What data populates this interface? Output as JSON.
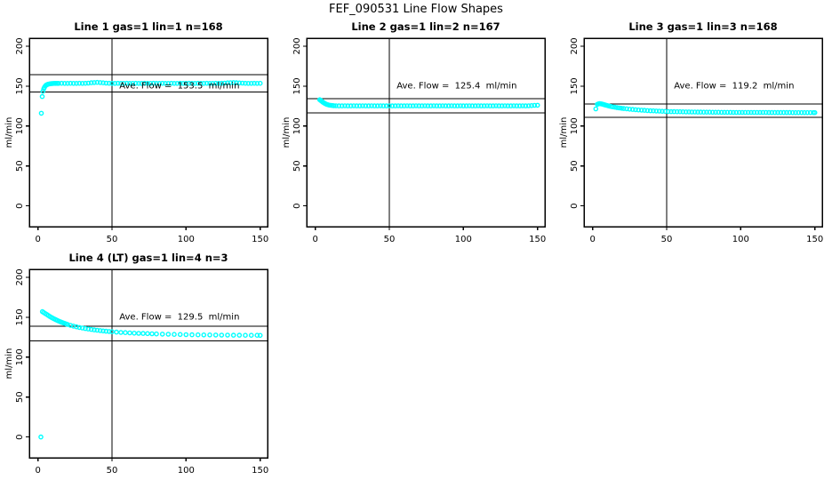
{
  "page_title": "FEF_090531  Line Flow Shapes",
  "chart_data": [
    {
      "type": "scatter",
      "title": "Line 1 gas=1 lin=1 n=168",
      "ylabel": "ml/min",
      "ave_flow_ml_min": 153.5,
      "ave_flow_label": "Ave. Flow =  153.5  ml/min",
      "limit_lines": [
        164.2,
        142.8
      ],
      "vline_x": 50,
      "xlim": [
        -5.8,
        155
      ],
      "ylim": [
        -26,
        210
      ],
      "xticks": [
        0,
        50,
        100,
        150
      ],
      "yticks": [
        0,
        50,
        100,
        150,
        200
      ],
      "marker_color": "#00FFFF",
      "label_pos": [
        95.5,
        150.5
      ],
      "points": [
        [
          2.3,
          116
        ],
        [
          2.9,
          137
        ],
        [
          3.4,
          143.5
        ],
        [
          3.9,
          146.5
        ],
        [
          4.4,
          148.5
        ],
        [
          5,
          150.2
        ],
        [
          5.6,
          151.3
        ],
        [
          6.3,
          152
        ],
        [
          7,
          152.5
        ],
        [
          8,
          152.9
        ],
        [
          9,
          153.1
        ],
        [
          10,
          153.3
        ],
        [
          11,
          153.4
        ],
        [
          12,
          153.5
        ],
        [
          13,
          153.5
        ],
        [
          14,
          153.5
        ],
        [
          16,
          153.6
        ],
        [
          18,
          153.5
        ],
        [
          20,
          153.5
        ],
        [
          22,
          153.6
        ],
        [
          24,
          153.5
        ],
        [
          26,
          153.5
        ],
        [
          28,
          153.6
        ],
        [
          30,
          153.5
        ],
        [
          32,
          153.6
        ],
        [
          34,
          153.8
        ],
        [
          36,
          154.2
        ],
        [
          38,
          154.5
        ],
        [
          40,
          154.7
        ],
        [
          42,
          154.5
        ],
        [
          44,
          154.1
        ],
        [
          46,
          153.8
        ],
        [
          48,
          153.6
        ],
        [
          50,
          153.5
        ],
        [
          52,
          153.5
        ],
        [
          54,
          153.6
        ],
        [
          56,
          153.5
        ],
        [
          58,
          153.5
        ],
        [
          60,
          153.6
        ],
        [
          62,
          153.5
        ],
        [
          64,
          153.5
        ],
        [
          66,
          153.6
        ],
        [
          68,
          153.5
        ],
        [
          70,
          153.5
        ],
        [
          72,
          153.6
        ],
        [
          74,
          153.5
        ],
        [
          76,
          153.5
        ],
        [
          78,
          153.6
        ],
        [
          80,
          153.5
        ],
        [
          82,
          153.5
        ],
        [
          84,
          153.6
        ],
        [
          86,
          153.5
        ],
        [
          88,
          153.5
        ],
        [
          90,
          153.6
        ],
        [
          92,
          153.5
        ],
        [
          94,
          153.5
        ],
        [
          96,
          153.6
        ],
        [
          98,
          153.5
        ],
        [
          100,
          153.5
        ],
        [
          102,
          153.6
        ],
        [
          104,
          153.5
        ],
        [
          106,
          153.5
        ],
        [
          108,
          153.6
        ],
        [
          110,
          153.5
        ],
        [
          112,
          153.5
        ],
        [
          114,
          153.6
        ],
        [
          116,
          153.5
        ],
        [
          118,
          153.5
        ],
        [
          120,
          153.6
        ],
        [
          122,
          153.5
        ],
        [
          124,
          153.6
        ],
        [
          126,
          153.8
        ],
        [
          128,
          154.1
        ],
        [
          130,
          154.3
        ],
        [
          132,
          154.4
        ],
        [
          134,
          154.2
        ],
        [
          136,
          154
        ],
        [
          138,
          153.8
        ],
        [
          140,
          153.6
        ],
        [
          142,
          153.5
        ],
        [
          144,
          153.5
        ],
        [
          146,
          153.6
        ],
        [
          148,
          153.5
        ],
        [
          150,
          153.6
        ]
      ]
    },
    {
      "type": "scatter",
      "title": "Line 2 gas=1 lin=2 n=167",
      "ylabel": "ml/min",
      "ave_flow_ml_min": 125.4,
      "ave_flow_label": "Ave. Flow =  125.4  ml/min",
      "limit_lines": [
        134.2,
        116.6
      ],
      "vline_x": 50,
      "xlim": [
        -5.8,
        155
      ],
      "ylim": [
        -26,
        210
      ],
      "xticks": [
        0,
        50,
        100,
        150
      ],
      "yticks": [
        0,
        50,
        100,
        150,
        200
      ],
      "marker_color": "#00FFFF",
      "label_pos": [
        95.5,
        150.5
      ],
      "points": [
        [
          3,
          133
        ],
        [
          3.5,
          132.4
        ],
        [
          4,
          131.6
        ],
        [
          4.6,
          130.7
        ],
        [
          5.2,
          129.8
        ],
        [
          6,
          128.8
        ],
        [
          6.8,
          128
        ],
        [
          7.6,
          127.3
        ],
        [
          8.5,
          126.7
        ],
        [
          9.5,
          126.2
        ],
        [
          10.5,
          125.9
        ],
        [
          11.5,
          125.7
        ],
        [
          12.5,
          125.5
        ],
        [
          14,
          125.4
        ],
        [
          16,
          125.3
        ],
        [
          18,
          125.3
        ],
        [
          20,
          125.4
        ],
        [
          22,
          125.3
        ],
        [
          24,
          125.3
        ],
        [
          26,
          125.4
        ],
        [
          28,
          125.3
        ],
        [
          30,
          125.3
        ],
        [
          32,
          125.4
        ],
        [
          34,
          125.3
        ],
        [
          36,
          125.3
        ],
        [
          38,
          125.4
        ],
        [
          40,
          125.3
        ],
        [
          42,
          125.3
        ],
        [
          44,
          125.4
        ],
        [
          46,
          125.3
        ],
        [
          48,
          125.3
        ],
        [
          50,
          125.4
        ],
        [
          52,
          125.3
        ],
        [
          54,
          125.3
        ],
        [
          56,
          125.4
        ],
        [
          58,
          125.3
        ],
        [
          60,
          125.3
        ],
        [
          62,
          125.4
        ],
        [
          64,
          125.3
        ],
        [
          66,
          125.3
        ],
        [
          68,
          125.4
        ],
        [
          70,
          125.3
        ],
        [
          72,
          125.3
        ],
        [
          74,
          125.4
        ],
        [
          76,
          125.3
        ],
        [
          78,
          125.3
        ],
        [
          80,
          125.4
        ],
        [
          82,
          125.3
        ],
        [
          84,
          125.3
        ],
        [
          86,
          125.4
        ],
        [
          88,
          125.3
        ],
        [
          90,
          125.3
        ],
        [
          92,
          125.4
        ],
        [
          94,
          125.3
        ],
        [
          96,
          125.3
        ],
        [
          98,
          125.4
        ],
        [
          100,
          125.3
        ],
        [
          102,
          125.3
        ],
        [
          104,
          125.4
        ],
        [
          106,
          125.3
        ],
        [
          108,
          125.3
        ],
        [
          110,
          125.4
        ],
        [
          112,
          125.3
        ],
        [
          114,
          125.3
        ],
        [
          116,
          125.4
        ],
        [
          118,
          125.3
        ],
        [
          120,
          125.3
        ],
        [
          122,
          125.4
        ],
        [
          124,
          125.3
        ],
        [
          126,
          125.3
        ],
        [
          128,
          125.4
        ],
        [
          130,
          125.3
        ],
        [
          132,
          125.3
        ],
        [
          134,
          125.4
        ],
        [
          136,
          125.3
        ],
        [
          138,
          125.3
        ],
        [
          140,
          125.4
        ],
        [
          142,
          125.3
        ],
        [
          144,
          125.4
        ],
        [
          146,
          125.6
        ],
        [
          148,
          125.9
        ],
        [
          150,
          126.1
        ]
      ]
    },
    {
      "type": "scatter",
      "title": "Line 3 gas=1 lin=3 n=168",
      "ylabel": "ml/min",
      "ave_flow_ml_min": 119.2,
      "ave_flow_label": "Ave. Flow =  119.2  ml/min",
      "limit_lines": [
        127.5,
        110.9
      ],
      "vline_x": 50,
      "xlim": [
        -5.8,
        155
      ],
      "ylim": [
        -26,
        210
      ],
      "xticks": [
        0,
        50,
        100,
        150
      ],
      "yticks": [
        0,
        50,
        100,
        150,
        200
      ],
      "marker_color": "#00FFFF",
      "label_pos": [
        95.5,
        150.5
      ],
      "points": [
        [
          2.2,
          121.5
        ],
        [
          3.2,
          127.2
        ],
        [
          4,
          127.9
        ],
        [
          4.8,
          128.1
        ],
        [
          5.6,
          127.9
        ],
        [
          6.5,
          127.5
        ],
        [
          7.5,
          127
        ],
        [
          8.5,
          126.4
        ],
        [
          9.5,
          125.9
        ],
        [
          10.5,
          125.4
        ],
        [
          11.5,
          124.9
        ],
        [
          12.5,
          124.5
        ],
        [
          13.5,
          124.1
        ],
        [
          15,
          123.6
        ],
        [
          16.5,
          123.1
        ],
        [
          18,
          122.7
        ],
        [
          19.5,
          122.3
        ],
        [
          21,
          122
        ],
        [
          23,
          121.6
        ],
        [
          25,
          121.2
        ],
        [
          27,
          120.8
        ],
        [
          29,
          120.5
        ],
        [
          31,
          120.2
        ],
        [
          33,
          119.9
        ],
        [
          35,
          119.7
        ],
        [
          37,
          119.4
        ],
        [
          39,
          119.2
        ],
        [
          41,
          119
        ],
        [
          43,
          118.8
        ],
        [
          45,
          118.7
        ],
        [
          47,
          118.5
        ],
        [
          49,
          118.4
        ],
        [
          51,
          118.2
        ],
        [
          53,
          118.1
        ],
        [
          55,
          118
        ],
        [
          57,
          117.9
        ],
        [
          59,
          117.9
        ],
        [
          61,
          117.8
        ],
        [
          63,
          117.7
        ],
        [
          65,
          117.7
        ],
        [
          67,
          117.6
        ],
        [
          69,
          117.6
        ],
        [
          71,
          117.5
        ],
        [
          73,
          117.5
        ],
        [
          75,
          117.4
        ],
        [
          77,
          117.4
        ],
        [
          79,
          117.4
        ],
        [
          81,
          117.3
        ],
        [
          83,
          117.3
        ],
        [
          85,
          117.3
        ],
        [
          87,
          117.2
        ],
        [
          89,
          117.2
        ],
        [
          91,
          117.2
        ],
        [
          93,
          117.2
        ],
        [
          95,
          117.1
        ],
        [
          97,
          117.1
        ],
        [
          99,
          117.1
        ],
        [
          101,
          117.1
        ],
        [
          103,
          117.1
        ],
        [
          105,
          117
        ],
        [
          107,
          117
        ],
        [
          109,
          117
        ],
        [
          111,
          117
        ],
        [
          113,
          117
        ],
        [
          115,
          117
        ],
        [
          117,
          117
        ],
        [
          119,
          116.9
        ],
        [
          121,
          116.9
        ],
        [
          123,
          116.9
        ],
        [
          125,
          116.9
        ],
        [
          127,
          116.9
        ],
        [
          129,
          116.9
        ],
        [
          131,
          116.9
        ],
        [
          133,
          116.9
        ],
        [
          135,
          116.8
        ],
        [
          137,
          116.8
        ],
        [
          139,
          116.8
        ],
        [
          141,
          116.8
        ],
        [
          143,
          116.8
        ],
        [
          145,
          116.8
        ],
        [
          147,
          116.8
        ],
        [
          149,
          116.8
        ],
        [
          150,
          116.8
        ]
      ]
    },
    {
      "type": "scatter",
      "title": "Line 4 (LT) gas=1 lin=4 n=3",
      "ylabel": "ml/min",
      "ave_flow_ml_min": 129.5,
      "ave_flow_label": "Ave. Flow =  129.5  ml/min",
      "limit_lines": [
        138.6,
        120.4
      ],
      "vline_x": 50,
      "xlim": [
        -5.8,
        155
      ],
      "ylim": [
        -26,
        210
      ],
      "xticks": [
        0,
        50,
        100,
        150
      ],
      "yticks": [
        0,
        50,
        100,
        150,
        200
      ],
      "marker_color": "#00FFFF",
      "label_pos": [
        95.5,
        150.5
      ],
      "points": [
        [
          2,
          0
        ],
        [
          3,
          157
        ],
        [
          4,
          155.8
        ],
        [
          5,
          154.6
        ],
        [
          6,
          153.4
        ],
        [
          7,
          152.2
        ],
        [
          8,
          151
        ],
        [
          9,
          149.9
        ],
        [
          10,
          148.9
        ],
        [
          11,
          147.9
        ],
        [
          12,
          147
        ],
        [
          13,
          146.1
        ],
        [
          14,
          145.2
        ],
        [
          15,
          144.4
        ],
        [
          16,
          143.7
        ],
        [
          17,
          143
        ],
        [
          18,
          142.3
        ],
        [
          19,
          141.6
        ],
        [
          20,
          141
        ],
        [
          22,
          139.9
        ],
        [
          24,
          138.9
        ],
        [
          26,
          138
        ],
        [
          28,
          137.2
        ],
        [
          30,
          136.5
        ],
        [
          32,
          135.9
        ],
        [
          34,
          135.3
        ],
        [
          36,
          134.7
        ],
        [
          38,
          134.2
        ],
        [
          40,
          133.7
        ],
        [
          42,
          133.3
        ],
        [
          44,
          132.9
        ],
        [
          46,
          132.5
        ],
        [
          48,
          132.2
        ],
        [
          50,
          131.9
        ],
        [
          53,
          131.4
        ],
        [
          56,
          131
        ],
        [
          59,
          130.7
        ],
        [
          62,
          130.4
        ],
        [
          65,
          130.1
        ],
        [
          68,
          129.9
        ],
        [
          71,
          129.7
        ],
        [
          74,
          129.5
        ],
        [
          77,
          129.3
        ],
        [
          80,
          129.1
        ],
        [
          84,
          128.9
        ],
        [
          88,
          128.7
        ],
        [
          92,
          128.5
        ],
        [
          96,
          128.4
        ],
        [
          100,
          128.2
        ],
        [
          104,
          128.1
        ],
        [
          108,
          128
        ],
        [
          112,
          127.9
        ],
        [
          116,
          127.8
        ],
        [
          120,
          127.7
        ],
        [
          124,
          127.6
        ],
        [
          128,
          127.6
        ],
        [
          132,
          127.5
        ],
        [
          136,
          127.5
        ],
        [
          140,
          127.4
        ],
        [
          144,
          127.4
        ],
        [
          148,
          127.4
        ],
        [
          150,
          127.3
        ]
      ]
    }
  ]
}
